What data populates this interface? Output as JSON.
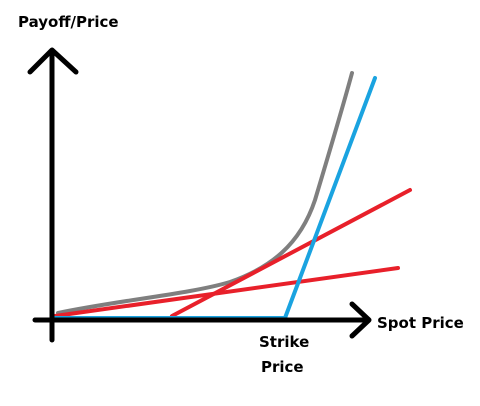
{
  "y_axis_label": "Payoff/Price",
  "x_axis_label": "Spot Price",
  "strike_label": {
    "line1": "Strike",
    "line2": "Price"
  }
}
